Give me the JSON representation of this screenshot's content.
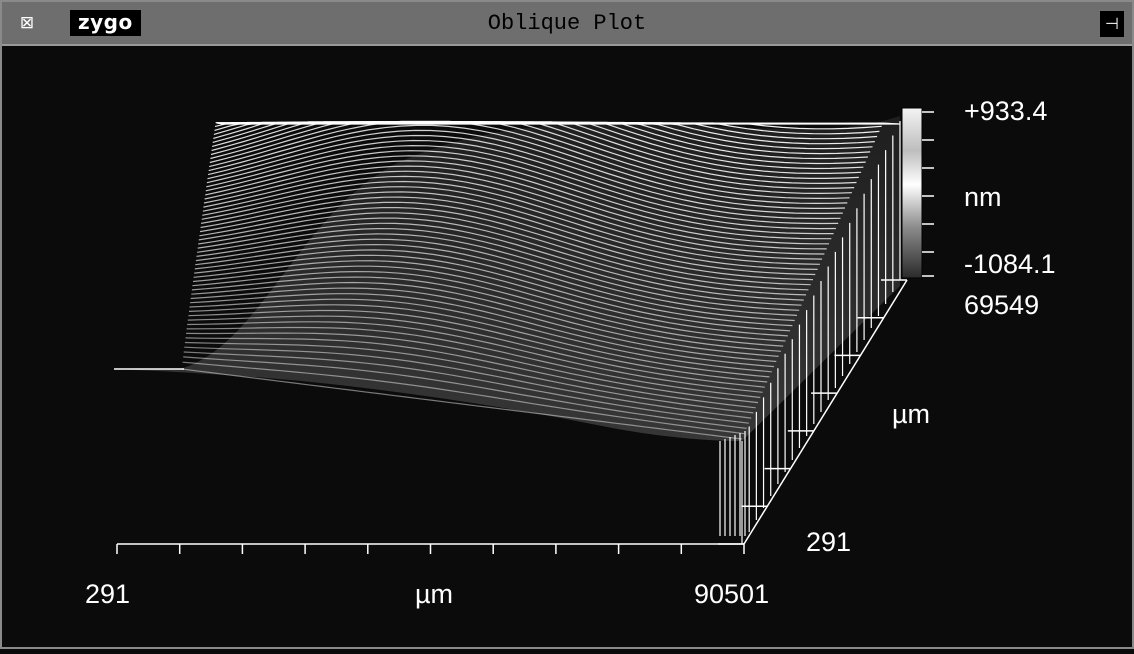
{
  "window": {
    "title": "Oblique Plot",
    "logo": "zygo",
    "menu_icon": "window-menu-icon",
    "pin_icon": "pin-icon"
  },
  "plot": {
    "x_axis": {
      "min_label": "291",
      "unit_label": "µm",
      "max_label": "90501"
    },
    "y_axis": {
      "min_label": "291",
      "unit_label": "µm",
      "max_label": "69549"
    },
    "z_scale": {
      "max_label": "+933.4",
      "unit_label": "nm",
      "min_label": "-1084.1"
    },
    "colors": {
      "background": "#0b0b0b",
      "lines": "#ffffff",
      "titlebar": "#6e6e6e"
    }
  }
}
